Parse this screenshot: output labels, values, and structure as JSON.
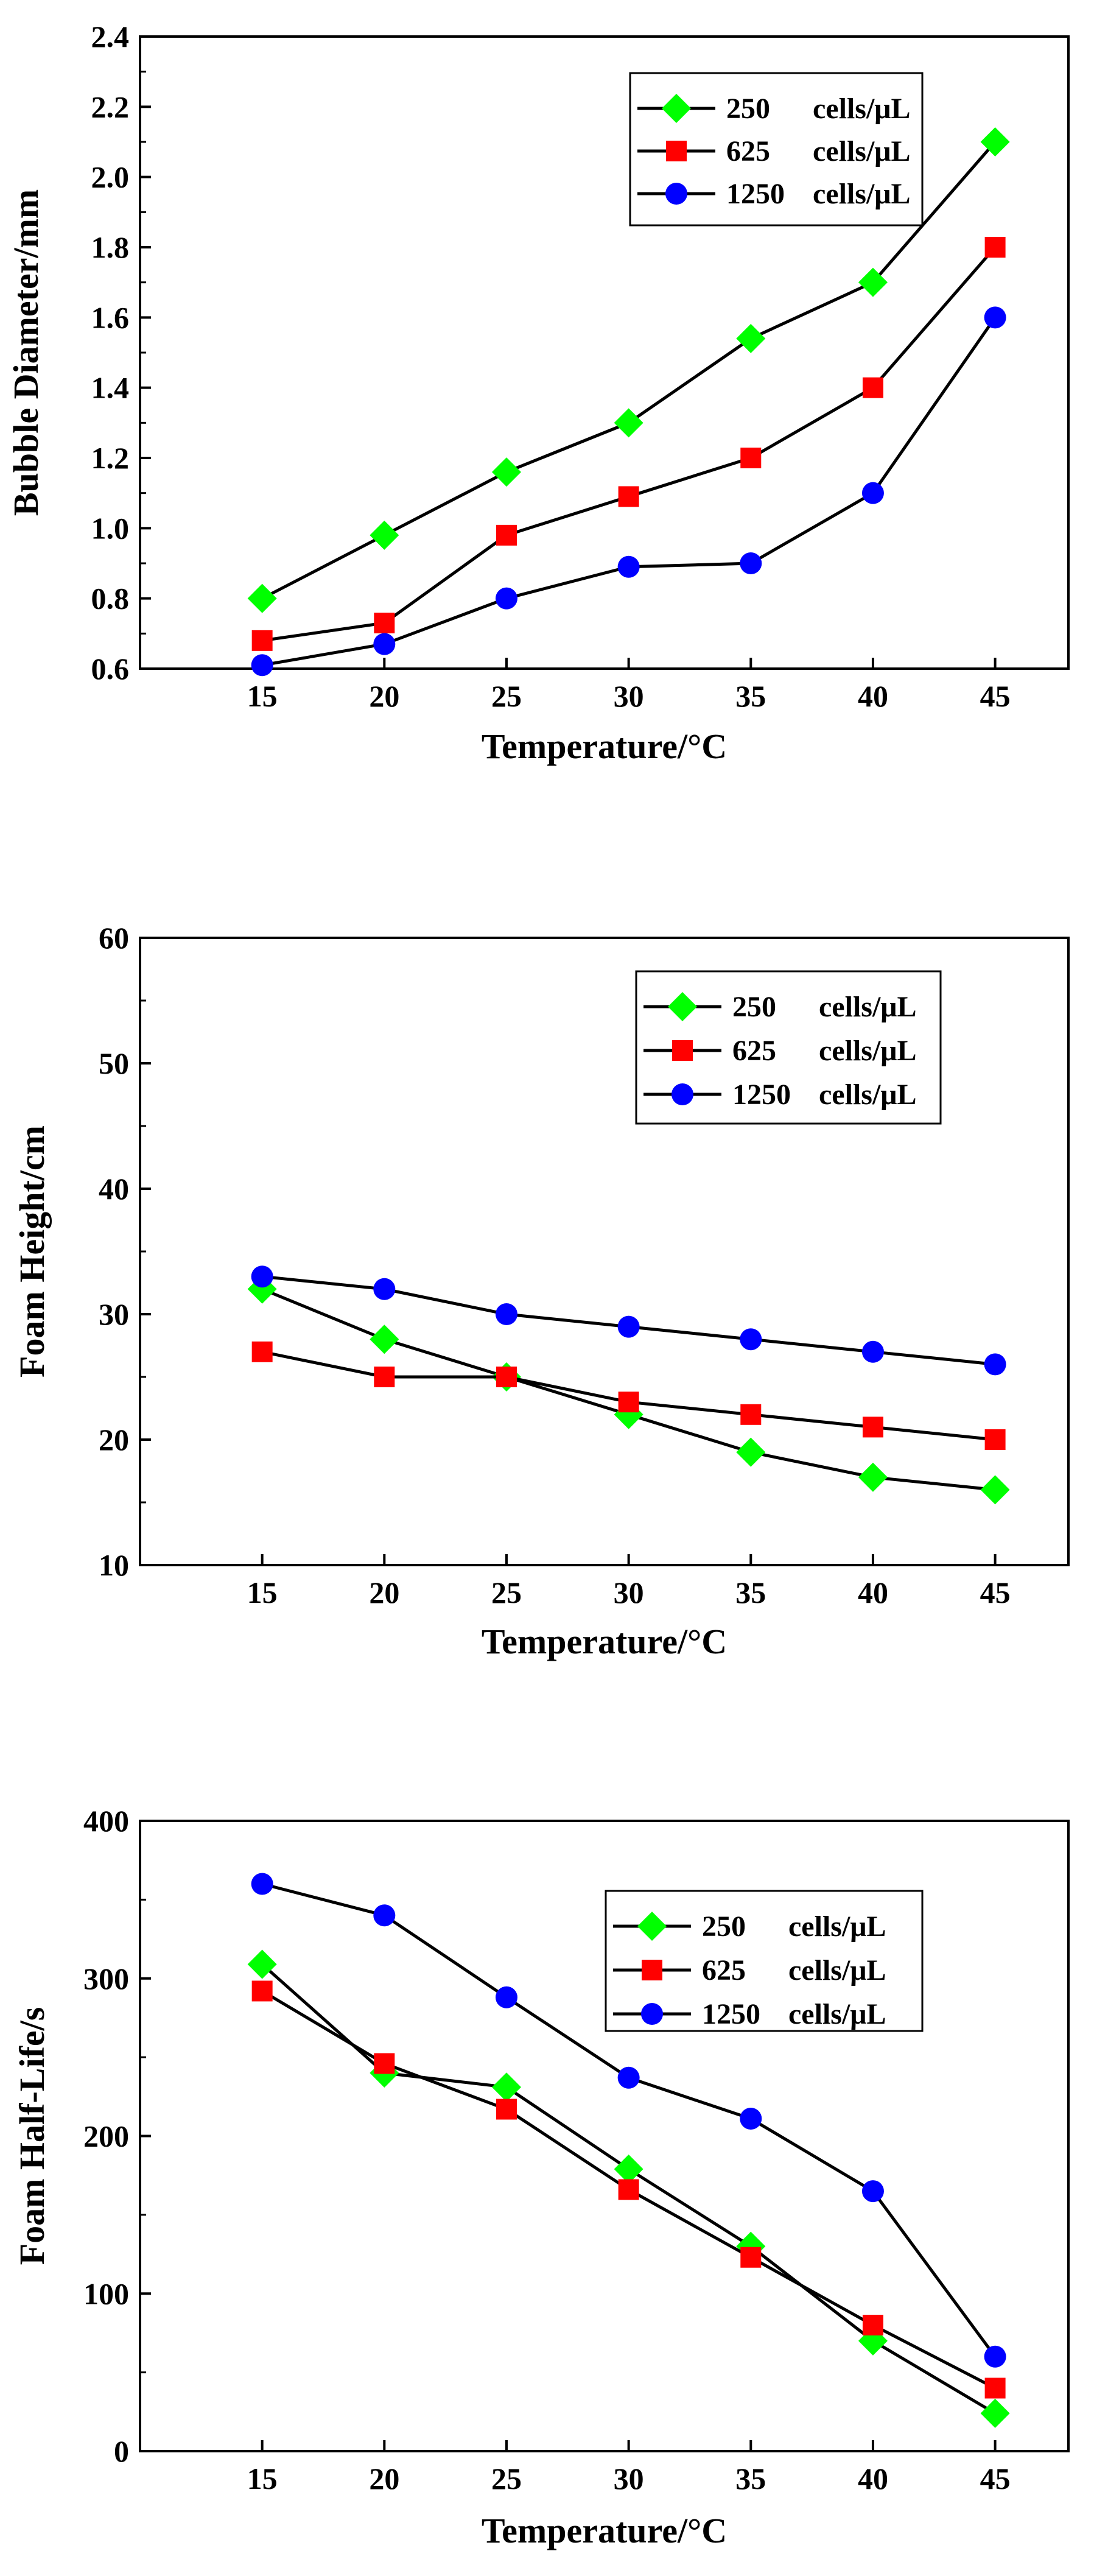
{
  "chart_data": [
    {
      "type": "line",
      "title": "",
      "xlabel": "Temperature/°C",
      "ylabel": "Bubble Diameter/mm",
      "x": [
        15,
        20,
        25,
        30,
        35,
        40,
        45
      ],
      "xlim": [
        10,
        48
      ],
      "ylim": [
        0.6,
        2.4
      ],
      "xticks": [
        "15",
        "20",
        "25",
        "30",
        "35",
        "40",
        "45"
      ],
      "yticks": [
        "0.6",
        "0.8",
        "1.0",
        "1.2",
        "1.4",
        "1.6",
        "1.8",
        "2.0",
        "2.2",
        "2.4"
      ],
      "legend_position": "top-right",
      "series": [
        {
          "name": "250 cells/μL",
          "legend_num": "250",
          "legend_unit": "cells/μL",
          "color": "#00ff00",
          "marker": "diamond",
          "values": [
            0.8,
            0.98,
            1.16,
            1.3,
            1.54,
            1.7,
            2.1
          ]
        },
        {
          "name": "625 cells/μL",
          "legend_num": "625",
          "legend_unit": "cells/μL",
          "color": "#ff0000",
          "marker": "square",
          "values": [
            0.68,
            0.73,
            0.98,
            1.09,
            1.2,
            1.4,
            1.8
          ]
        },
        {
          "name": "1250 cells/μL",
          "legend_num": "1250",
          "legend_unit": "cells/μL",
          "color": "#0000ff",
          "marker": "circle",
          "values": [
            0.61,
            0.67,
            0.8,
            0.89,
            0.9,
            1.1,
            1.6
          ]
        }
      ]
    },
    {
      "type": "line",
      "title": "",
      "xlabel": "Temperature/°C",
      "ylabel": "Foam Height/cm",
      "x": [
        15,
        20,
        25,
        30,
        35,
        40,
        45
      ],
      "xlim": [
        10,
        48
      ],
      "ylim": [
        10,
        60
      ],
      "xticks": [
        "15",
        "20",
        "25",
        "30",
        "35",
        "40",
        "45"
      ],
      "yticks": [
        "10",
        "20",
        "30",
        "40",
        "50",
        "60"
      ],
      "legend_position": "top-right",
      "series": [
        {
          "name": "250 cells/μL",
          "legend_num": "250",
          "legend_unit": "cells/μL",
          "color": "#00ff00",
          "marker": "diamond",
          "values": [
            32,
            28,
            25,
            22,
            19,
            17,
            16
          ]
        },
        {
          "name": "625 cells/μL",
          "legend_num": "625",
          "legend_unit": "cells/μL",
          "color": "#ff0000",
          "marker": "square",
          "values": [
            27,
            25,
            25,
            23,
            22,
            21,
            20
          ]
        },
        {
          "name": "1250 cells/μL",
          "legend_num": "1250",
          "legend_unit": "cells/μL",
          "color": "#0000ff",
          "marker": "circle",
          "values": [
            33,
            32,
            30,
            29,
            28,
            27,
            26
          ]
        }
      ]
    },
    {
      "type": "line",
      "title": "",
      "xlabel": "Temperature/°C",
      "ylabel": "Foam Half-Life/s",
      "x": [
        15,
        20,
        25,
        30,
        35,
        40,
        45
      ],
      "xlim": [
        10,
        48
      ],
      "ylim": [
        0,
        400
      ],
      "xticks": [
        "15",
        "20",
        "25",
        "30",
        "35",
        "40",
        "45"
      ],
      "yticks": [
        "0",
        "100",
        "200",
        "300",
        "400"
      ],
      "legend_position": "top-right",
      "series": [
        {
          "name": "250 cells/μL",
          "legend_num": "250",
          "legend_unit": "cells/μL",
          "color": "#00ff00",
          "marker": "diamond",
          "values": [
            309,
            240,
            231,
            179,
            130,
            70,
            24
          ]
        },
        {
          "name": "625 cells/μL",
          "legend_num": "625",
          "legend_unit": "cells/μL",
          "color": "#ff0000",
          "marker": "square",
          "values": [
            292,
            246,
            217,
            166,
            123,
            80,
            40
          ]
        },
        {
          "name": "1250 cells/μL",
          "legend_num": "1250",
          "legend_unit": "cells/μL",
          "color": "#0000ff",
          "marker": "circle",
          "values": [
            360,
            340,
            288,
            237,
            211,
            165,
            60
          ]
        }
      ]
    }
  ]
}
